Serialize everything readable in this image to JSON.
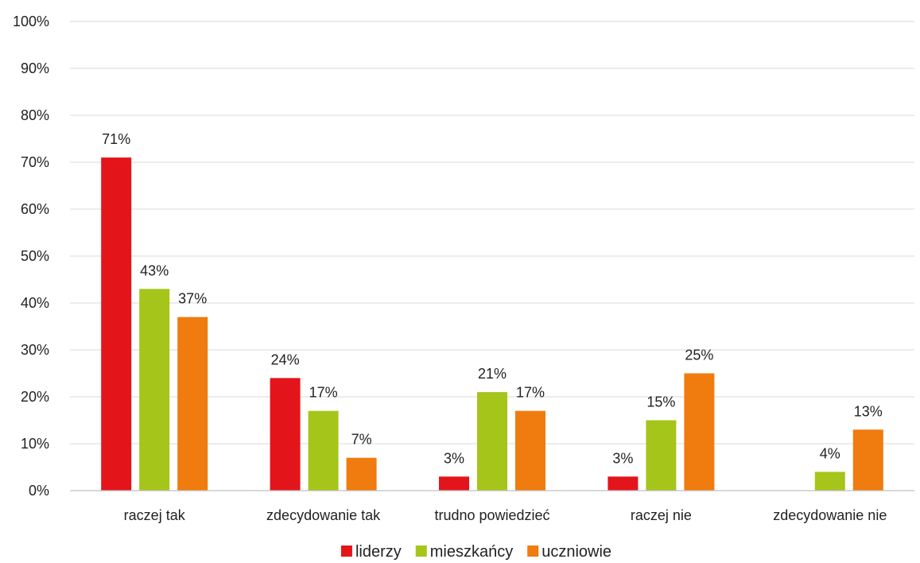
{
  "chart_data": {
    "type": "bar",
    "categories": [
      "raczej tak",
      "zdecydowanie tak",
      "trudno powiedzieć",
      "raczej nie",
      "zdecydowanie nie"
    ],
    "series": [
      {
        "name": "liderzy",
        "color": "#e3151b",
        "values": [
          71,
          24,
          3,
          3,
          null
        ],
        "labels": [
          "71%",
          "24%",
          "3%",
          "3%",
          ""
        ]
      },
      {
        "name": "mieszkańcy",
        "color": "#a5c51a",
        "values": [
          43,
          17,
          21,
          15,
          4
        ],
        "labels": [
          "43%",
          "17%",
          "21%",
          "15%",
          "4%"
        ]
      },
      {
        "name": "uczniowie",
        "color": "#f07b0e",
        "values": [
          37,
          7,
          17,
          25,
          13
        ],
        "labels": [
          "37%",
          "7%",
          "17%",
          "25%",
          "13%"
        ]
      }
    ],
    "ylim": [
      0,
      100
    ],
    "yticks": [
      "0%",
      "10%",
      "20%",
      "30%",
      "40%",
      "50%",
      "60%",
      "70%",
      "80%",
      "90%",
      "100%"
    ],
    "grid": true,
    "legend": "bottom",
    "title": "",
    "xlabel": "",
    "ylabel": ""
  }
}
